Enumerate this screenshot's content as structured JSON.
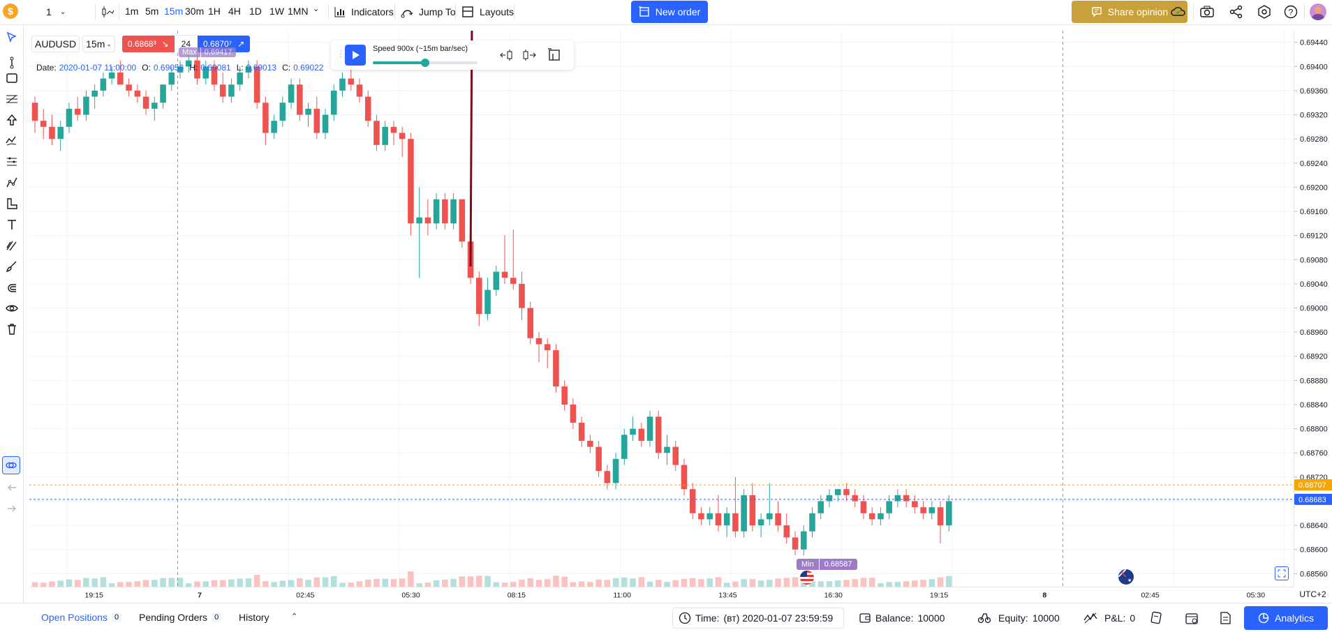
{
  "toolbar": {
    "interval_value": "1",
    "timeframes": [
      "1m",
      "5m",
      "15m",
      "30m",
      "1H",
      "4H",
      "1D",
      "1W",
      "1MN"
    ],
    "active_timeframe": "15m",
    "indicators": "Indicators",
    "jump_to": "Jump To",
    "layouts": "Layouts",
    "new_order": "New order",
    "share_opinion": "Share opinion"
  },
  "legend": {
    "symbol": "AUDUSD",
    "interval": "15m",
    "bid": "0.6868³",
    "spread": "24",
    "ask": "0.6870⁷",
    "date_label": "Date:",
    "date_value": "2020-01-07 11:00:00",
    "o_label": "O:",
    "o_value": "0.69056",
    "h_label": "H:",
    "h_value": "0.69081",
    "l_label": "L:",
    "l_value": "0.69013",
    "c_label": "C:",
    "c_value": "0.69022",
    "max_label": "Max",
    "max_value": "0.69417",
    "min_label": "Min",
    "min_value": "0.68587"
  },
  "replay": {
    "speed": "Speed 900x (~15m bar/sec)",
    "speed_fraction": 0.5
  },
  "price_axis": {
    "ticks": [
      "0.69440",
      "0.69400",
      "0.69360",
      "0.69320",
      "0.69280",
      "0.69240",
      "0.69200",
      "0.69160",
      "0.69120",
      "0.69080",
      "0.69040",
      "0.69000",
      "0.68960",
      "0.68920",
      "0.68880",
      "0.68840",
      "0.68800",
      "0.68760",
      "0.68720",
      "0.68680",
      "0.68640",
      "0.68600",
      "0.68560"
    ],
    "ask_marker": "0.68707",
    "bid_marker": "0.68683",
    "timezone": "UTC+2"
  },
  "time_axis": {
    "ticks": [
      "19:15",
      "7",
      "02:45",
      "05:30",
      "08:15",
      "11:00",
      "13:45",
      "16:30",
      "19:15",
      "8",
      "02:45",
      "05:30"
    ]
  },
  "chart_data": {
    "type": "candlestick",
    "symbol": "AUDUSD",
    "interval": "15m",
    "ylim": [
      0.6855,
      0.6945
    ],
    "candles": [
      [
        0.6934,
        0.6935,
        0.6929,
        0.6931
      ],
      [
        0.6931,
        0.6933,
        0.6928,
        0.693
      ],
      [
        0.693,
        0.6932,
        0.6927,
        0.6928
      ],
      [
        0.6928,
        0.6931,
        0.6926,
        0.693
      ],
      [
        0.693,
        0.6934,
        0.6929,
        0.6933
      ],
      [
        0.6933,
        0.6935,
        0.6931,
        0.6932
      ],
      [
        0.6932,
        0.6936,
        0.6931,
        0.6935
      ],
      [
        0.6935,
        0.6937,
        0.6933,
        0.6936
      ],
      [
        0.6936,
        0.6939,
        0.6935,
        0.6938
      ],
      [
        0.6938,
        0.694,
        0.6937,
        0.6939
      ],
      [
        0.6939,
        0.6941,
        0.6937,
        0.6937
      ],
      [
        0.6937,
        0.6938,
        0.6935,
        0.6936
      ],
      [
        0.6936,
        0.6937,
        0.6934,
        0.6935
      ],
      [
        0.6935,
        0.6936,
        0.6932,
        0.6933
      ],
      [
        0.6933,
        0.6935,
        0.6931,
        0.6934
      ],
      [
        0.6934,
        0.6937,
        0.6933,
        0.6937
      ],
      [
        0.6937,
        0.694,
        0.6936,
        0.6939
      ],
      [
        0.6939,
        0.6941,
        0.6938,
        0.694
      ],
      [
        0.694,
        0.6942,
        0.6939,
        0.6941
      ],
      [
        0.6941,
        0.6942,
        0.6937,
        0.6938
      ],
      [
        0.6938,
        0.6941,
        0.6937,
        0.694
      ],
      [
        0.694,
        0.6941,
        0.6936,
        0.6937
      ],
      [
        0.6937,
        0.6939,
        0.6934,
        0.6935
      ],
      [
        0.6935,
        0.6938,
        0.6934,
        0.6937
      ],
      [
        0.6937,
        0.694,
        0.6936,
        0.6939
      ],
      [
        0.6939,
        0.6941,
        0.6938,
        0.694
      ],
      [
        0.694,
        0.6941,
        0.6933,
        0.6934
      ],
      [
        0.6934,
        0.6935,
        0.6927,
        0.6929
      ],
      [
        0.6929,
        0.6932,
        0.6928,
        0.6931
      ],
      [
        0.6931,
        0.6935,
        0.693,
        0.6934
      ],
      [
        0.6934,
        0.6938,
        0.6933,
        0.6937
      ],
      [
        0.6937,
        0.6938,
        0.6931,
        0.6932
      ],
      [
        0.6932,
        0.6934,
        0.693,
        0.6933
      ],
      [
        0.6933,
        0.6935,
        0.6928,
        0.6929
      ],
      [
        0.6929,
        0.6933,
        0.6928,
        0.6932
      ],
      [
        0.6932,
        0.6937,
        0.6931,
        0.6936
      ],
      [
        0.6936,
        0.6939,
        0.6935,
        0.6938
      ],
      [
        0.6938,
        0.694,
        0.6936,
        0.6937
      ],
      [
        0.6937,
        0.6938,
        0.6934,
        0.6935
      ],
      [
        0.6935,
        0.6936,
        0.693,
        0.6931
      ],
      [
        0.6931,
        0.6932,
        0.6926,
        0.6927
      ],
      [
        0.6927,
        0.6931,
        0.6926,
        0.693
      ],
      [
        0.693,
        0.6931,
        0.6927,
        0.6929
      ],
      [
        0.6929,
        0.693,
        0.6925,
        0.6928
      ],
      [
        0.6928,
        0.6929,
        0.6912,
        0.6914
      ],
      [
        0.6914,
        0.692,
        0.6905,
        0.6915
      ],
      [
        0.6915,
        0.6918,
        0.6912,
        0.6914
      ],
      [
        0.6914,
        0.6919,
        0.6913,
        0.6918
      ],
      [
        0.6918,
        0.6919,
        0.6913,
        0.6914
      ],
      [
        0.6914,
        0.6919,
        0.6913,
        0.6918
      ],
      [
        0.6918,
        0.6918,
        0.691,
        0.6911
      ],
      [
        0.6911,
        0.6912,
        0.6904,
        0.6905
      ],
      [
        0.6905,
        0.6906,
        0.6897,
        0.6899
      ],
      [
        0.6899,
        0.6905,
        0.6898,
        0.6903
      ],
      [
        0.6903,
        0.6907,
        0.6902,
        0.6906
      ],
      [
        0.6906,
        0.6912,
        0.6904,
        0.6905
      ],
      [
        0.6905,
        0.6913,
        0.6903,
        0.6904
      ],
      [
        0.6904,
        0.6906,
        0.6898,
        0.69
      ],
      [
        0.69,
        0.6901,
        0.6894,
        0.6895
      ],
      [
        0.6895,
        0.6896,
        0.6891,
        0.6894
      ],
      [
        0.6894,
        0.6895,
        0.689,
        0.6893
      ],
      [
        0.6893,
        0.6894,
        0.6886,
        0.6887
      ],
      [
        0.6887,
        0.6888,
        0.6883,
        0.6884
      ],
      [
        0.6884,
        0.6885,
        0.688,
        0.6881
      ],
      [
        0.6881,
        0.6882,
        0.6877,
        0.6878
      ],
      [
        0.6878,
        0.6879,
        0.6876,
        0.6877
      ],
      [
        0.6877,
        0.6878,
        0.6872,
        0.6873
      ],
      [
        0.6873,
        0.6874,
        0.687,
        0.6871
      ],
      [
        0.6871,
        0.6876,
        0.687,
        0.6875
      ],
      [
        0.6875,
        0.688,
        0.6874,
        0.6879
      ],
      [
        0.6879,
        0.6882,
        0.6878,
        0.688
      ],
      [
        0.688,
        0.6881,
        0.6877,
        0.6878
      ],
      [
        0.6878,
        0.6883,
        0.6877,
        0.6882
      ],
      [
        0.6882,
        0.6883,
        0.6875,
        0.6876
      ],
      [
        0.6876,
        0.6879,
        0.6874,
        0.6877
      ],
      [
        0.6877,
        0.6878,
        0.6873,
        0.6874
      ],
      [
        0.6874,
        0.6875,
        0.6869,
        0.687
      ],
      [
        0.687,
        0.6871,
        0.6865,
        0.6866
      ],
      [
        0.6866,
        0.6867,
        0.6864,
        0.6865
      ],
      [
        0.6865,
        0.6867,
        0.6864,
        0.6866
      ],
      [
        0.6866,
        0.6869,
        0.6863,
        0.6864
      ],
      [
        0.6864,
        0.6867,
        0.6862,
        0.6866
      ],
      [
        0.6866,
        0.6872,
        0.6862,
        0.6863
      ],
      [
        0.6863,
        0.687,
        0.6862,
        0.6869
      ],
      [
        0.6869,
        0.6871,
        0.6863,
        0.6864
      ],
      [
        0.6864,
        0.6866,
        0.6862,
        0.6865
      ],
      [
        0.6865,
        0.6871,
        0.6864,
        0.6866
      ],
      [
        0.6866,
        0.6868,
        0.6863,
        0.6864
      ],
      [
        0.6864,
        0.6866,
        0.6861,
        0.6862
      ],
      [
        0.6862,
        0.6863,
        0.6859,
        0.686
      ],
      [
        0.686,
        0.6864,
        0.6859,
        0.6863
      ],
      [
        0.6863,
        0.6867,
        0.6862,
        0.6866
      ],
      [
        0.6866,
        0.6869,
        0.6865,
        0.6868
      ],
      [
        0.6868,
        0.687,
        0.6867,
        0.6869
      ],
      [
        0.6869,
        0.687,
        0.6868,
        0.687
      ],
      [
        0.687,
        0.6871,
        0.6868,
        0.6869
      ],
      [
        0.6869,
        0.687,
        0.6867,
        0.6868
      ],
      [
        0.6868,
        0.6869,
        0.6865,
        0.6866
      ],
      [
        0.6866,
        0.6867,
        0.6864,
        0.6865
      ],
      [
        0.6865,
        0.6867,
        0.6864,
        0.6866
      ],
      [
        0.6866,
        0.6869,
        0.6865,
        0.6868
      ],
      [
        0.6868,
        0.687,
        0.6867,
        0.6869
      ],
      [
        0.6869,
        0.687,
        0.6867,
        0.6868
      ],
      [
        0.6868,
        0.6869,
        0.6866,
        0.6867
      ],
      [
        0.6867,
        0.6868,
        0.6865,
        0.6866
      ],
      [
        0.6866,
        0.6868,
        0.6865,
        0.6867
      ],
      [
        0.6867,
        0.6868,
        0.6861,
        0.6864
      ],
      [
        0.6864,
        0.6869,
        0.6863,
        0.6868
      ]
    ]
  },
  "bottom": {
    "open_positions": "Open Positions",
    "open_positions_count": "0",
    "pending_orders": "Pending Orders",
    "pending_orders_count": "0",
    "history": "History",
    "time_label": "Time:",
    "time_value": "(вт) 2020-01-07 23:59:59",
    "balance_label": "Balance:",
    "balance_value": "10000",
    "equity_label": "Equity:",
    "equity_value": "10000",
    "pnl_label": "P&L:",
    "pnl_value": "0",
    "analytics": "Analytics"
  },
  "colors": {
    "up": "#26a69a",
    "down": "#ef5350",
    "accent": "#2962ff",
    "annotation_arrow": "#7b0a1e"
  }
}
